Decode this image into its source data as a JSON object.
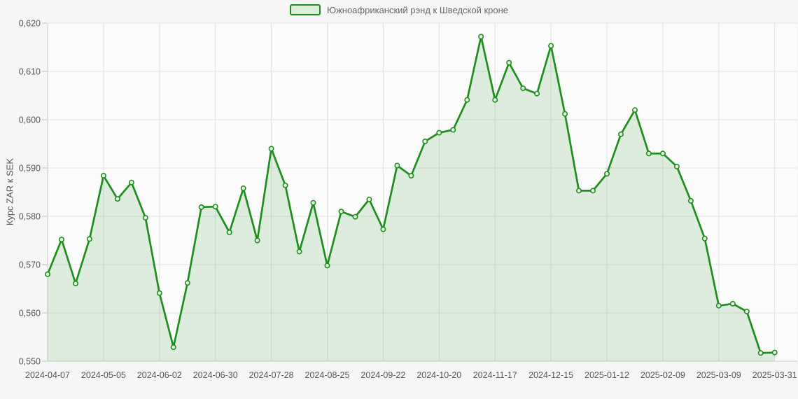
{
  "page": {
    "background": "#f6f6f6"
  },
  "legend": {
    "label": "Южноафриканский рэнд к Шведской кроне"
  },
  "y_axis": {
    "title": "Курс ZAR к SEK"
  },
  "chart_data": {
    "type": "area",
    "title": "",
    "xlabel": "",
    "ylabel": "Курс ZAR к SEK",
    "legend": [
      "Южноафриканский рэнд к Шведской кроне"
    ],
    "legend_position": "top-center",
    "grid": true,
    "ylim": [
      0.55,
      0.62
    ],
    "ytick_step": 0.01,
    "ytick_labels": [
      "0,550",
      "0,560",
      "0,570",
      "0,580",
      "0,590",
      "0,600",
      "0,610",
      "0,620"
    ],
    "xtick_indices": [
      0,
      4,
      8,
      12,
      16,
      20,
      24,
      28,
      32,
      36,
      40,
      44,
      48,
      52
    ],
    "xtick_labels": [
      "2024-04-07",
      "2024-05-05",
      "2024-06-02",
      "2024-06-30",
      "2024-07-28",
      "2024-08-25",
      "2024-09-22",
      "2024-10-20",
      "2024-11-17",
      "2024-12-15",
      "2025-01-12",
      "2025-02-09",
      "2025-03-09",
      "2025-03-31"
    ],
    "x": [
      "2024-04-07",
      "2024-04-14",
      "2024-04-21",
      "2024-04-28",
      "2024-05-05",
      "2024-05-12",
      "2024-05-19",
      "2024-05-26",
      "2024-06-02",
      "2024-06-09",
      "2024-06-16",
      "2024-06-23",
      "2024-06-30",
      "2024-07-07",
      "2024-07-14",
      "2024-07-21",
      "2024-07-28",
      "2024-08-04",
      "2024-08-11",
      "2024-08-18",
      "2024-08-25",
      "2024-09-01",
      "2024-09-08",
      "2024-09-15",
      "2024-09-22",
      "2024-09-29",
      "2024-10-06",
      "2024-10-13",
      "2024-10-20",
      "2024-10-27",
      "2024-11-03",
      "2024-11-10",
      "2024-11-17",
      "2024-11-24",
      "2024-12-01",
      "2024-12-08",
      "2024-12-15",
      "2024-12-22",
      "2024-12-29",
      "2025-01-05",
      "2025-01-12",
      "2025-01-19",
      "2025-01-26",
      "2025-02-02",
      "2025-02-09",
      "2025-02-16",
      "2025-02-23",
      "2025-03-02",
      "2025-03-09",
      "2025-03-16",
      "2025-03-23",
      "2025-03-30",
      "2025-03-31"
    ],
    "values": [
      0.568,
      0.5752,
      0.5661,
      0.5753,
      0.5884,
      0.5836,
      0.587,
      0.5797,
      0.5641,
      0.5529,
      0.5662,
      0.5819,
      0.582,
      0.5767,
      0.5858,
      0.575,
      0.594,
      0.5864,
      0.5727,
      0.5828,
      0.5698,
      0.581,
      0.5799,
      0.5835,
      0.5773,
      0.5905,
      0.5884,
      0.5955,
      0.5973,
      0.5979,
      0.6041,
      0.6172,
      0.6041,
      0.6118,
      0.6065,
      0.6054,
      0.6153,
      0.6012,
      0.5853,
      0.5853,
      0.5888,
      0.597,
      0.602,
      0.593,
      0.593,
      0.5903,
      0.5832,
      0.5754,
      0.5615,
      0.5619,
      0.5603,
      0.5517,
      0.5518
    ],
    "colors": {
      "line": "#1e8e1e",
      "area_fill": "rgba(30,142,30,0.13)",
      "marker_fill": "#f1f8ee",
      "marker_stroke": "#1e8e1e",
      "grid_h": "#e3e3e3",
      "grid_v": "#e0e0e0",
      "axis_line": "#c8c8c8",
      "tick_text": "#555555",
      "plot_background": "#fbfbfb"
    }
  }
}
